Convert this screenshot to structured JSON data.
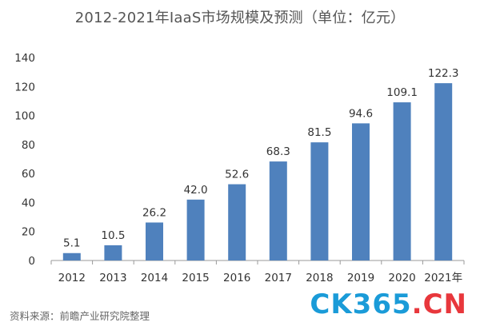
{
  "chart_data": {
    "type": "bar",
    "title": "2012-2021年IaaS市场规模及预测（单位：亿元）",
    "categories": [
      "2012",
      "2013",
      "2014",
      "2015",
      "2016",
      "2017",
      "2018",
      "2019",
      "2020",
      "2021年"
    ],
    "values": [
      5.1,
      10.5,
      26.2,
      42.0,
      52.6,
      68.3,
      81.5,
      94.6,
      109.1,
      122.3
    ],
    "data_labels": [
      "5.1",
      "10.5",
      "26.2",
      "42.0",
      "52.6",
      "68.3",
      "81.5",
      "94.6",
      "109.1",
      "122.3"
    ],
    "y_ticks": [
      "0",
      "20",
      "40",
      "60",
      "80",
      "100",
      "120",
      "140"
    ],
    "ylim": [
      0,
      140
    ],
    "xlabel": "",
    "ylabel": "",
    "grid": false,
    "bar_color": "#4f81bd"
  },
  "source": "资料来源：前瞻产业研究院整理",
  "watermark": {
    "part1": "CK365",
    "part2": ".",
    "part3": "CN"
  },
  "colors": {
    "title": "#555555",
    "axis": "#999999",
    "text": "#333333",
    "watermark_blue": "#1a9bd8",
    "watermark_red": "#e8373c"
  }
}
